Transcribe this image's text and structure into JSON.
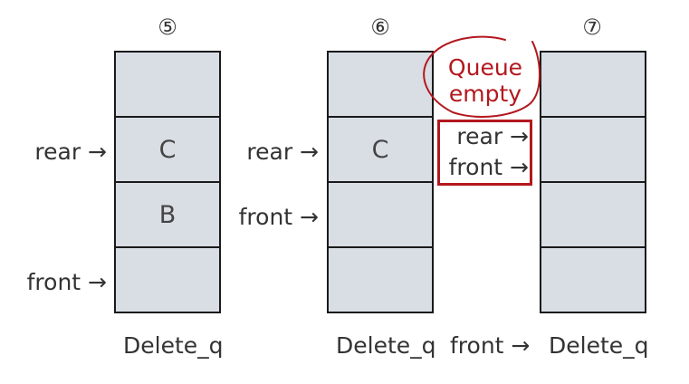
{
  "stages": [
    {
      "number": "⑤",
      "cells": [
        "",
        "C",
        "B",
        ""
      ],
      "pointers": [
        {
          "label": "rear →"
        },
        {
          "label": "front →"
        }
      ],
      "caption": "Delete_q"
    },
    {
      "number": "⑥",
      "cells": [
        "",
        "C",
        "",
        ""
      ],
      "pointers": [
        {
          "label": "rear →"
        },
        {
          "label": "front →"
        }
      ],
      "caption": "Delete_q"
    },
    {
      "number": "⑦",
      "cells": [
        "",
        "",
        "",
        ""
      ],
      "pointers": [
        {
          "label": "rear →"
        },
        {
          "label": "front →"
        }
      ],
      "caption": "Delete_q",
      "caption_prefix": "front →"
    }
  ],
  "annotation": {
    "text_line1": "Queue",
    "text_line2": "empty",
    "color": "#b3181e"
  }
}
